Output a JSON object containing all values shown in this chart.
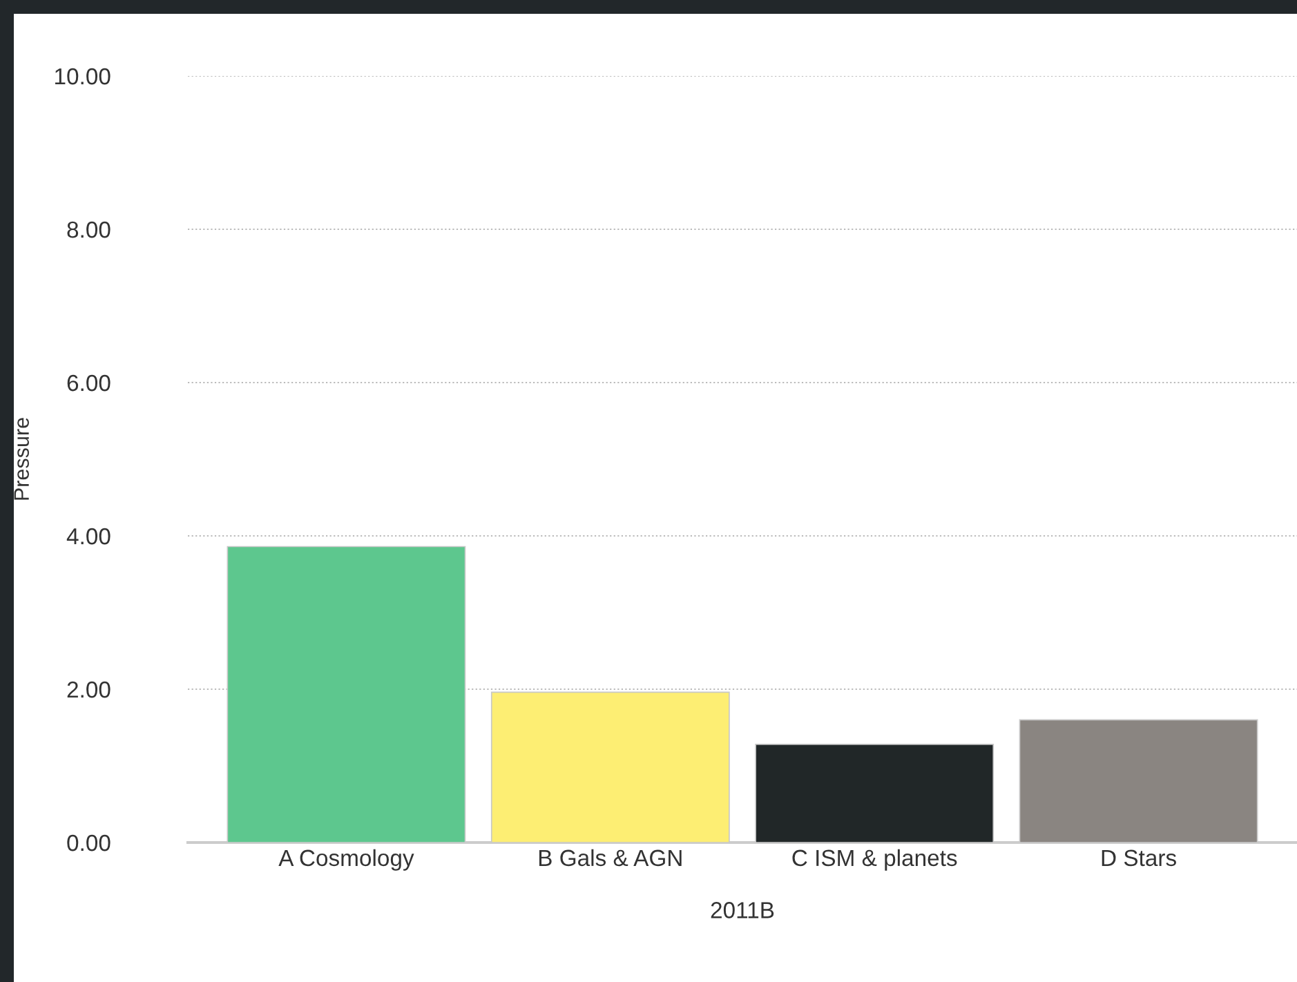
{
  "chart_data": {
    "type": "bar",
    "xlabel": "2011B",
    "ylabel": "Pressure",
    "categories": [
      "A Cosmology",
      "B Gals & AGN",
      "C ISM & planets",
      "D Stars"
    ],
    "values": [
      3.86,
      1.96,
      1.28,
      1.6
    ],
    "colors": [
      "#5dc78e",
      "#fdee73",
      "#212728",
      "#8a8581"
    ],
    "ylim": [
      0,
      10
    ],
    "yticks": [
      {
        "value": 0,
        "label": "0.00"
      },
      {
        "value": 2,
        "label": "2.00"
      },
      {
        "value": 4,
        "label": "4.00"
      },
      {
        "value": 6,
        "label": "6.00"
      },
      {
        "value": 8,
        "label": "8.00"
      },
      {
        "value": 10,
        "label": "10.00"
      }
    ],
    "grid": "y",
    "legend": false
  }
}
